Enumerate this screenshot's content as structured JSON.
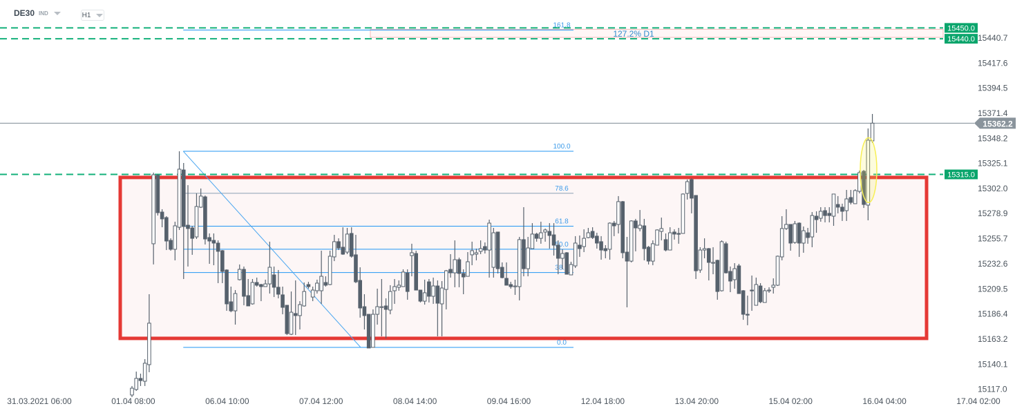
{
  "header": {
    "symbol": "DE30",
    "instrument_type": "IND",
    "timeframe": "H1"
  },
  "colors": {
    "candle": "#56616c",
    "fib": "#2196f3",
    "level_line": "#13b07a",
    "badge_green": "#0aa56c",
    "zone_border": "#e53935",
    "zone_fill": "#fdf6f6",
    "current_price": "#8a949c",
    "highlight": "#f7ef55"
  },
  "chart_data": {
    "type": "candlestick",
    "timeframe": "H1",
    "ylim": [
      15109.0,
      15475.7
    ],
    "y_ticks": [
      "15440.7",
      "15417.6",
      "15394.5",
      "15371.4",
      "15348.2",
      "15325.1",
      "15302.0",
      "15278.9",
      "15255.7",
      "15232.6",
      "15209.5",
      "15186.4",
      "15163.2",
      "15140.1",
      "15117.0"
    ],
    "x_ticks": [
      "31.03.2021  06:00",
      "01.04  08:00",
      "06.04  10:00",
      "07.04  12:00",
      "08.04  14:00",
      "09.04  16:00",
      "12.04  18:00",
      "13.04  20:00",
      "15.04  02:00",
      "16.04  04:00",
      "17.04  02:00"
    ],
    "current_price": {
      "value": 15362.2,
      "label": "15362.2"
    },
    "horizontal_levels": [
      {
        "value": 15450.0,
        "label": "15450.0"
      },
      {
        "value": 15440.0,
        "label": "15440.0"
      },
      {
        "value": 15315.0,
        "label": "15315.0"
      }
    ],
    "zone": {
      "top": 15312.2,
      "bottom": 15163.9
    },
    "fibonacci": {
      "high": 15336.3,
      "low": 15155.6,
      "levels": [
        {
          "ratio": "161.8",
          "value": 15448.0
        },
        {
          "ratio": "100.0",
          "value": 15336.3
        },
        {
          "ratio": "78.6",
          "value": 15297.6
        },
        {
          "ratio": "61.8",
          "value": 15267.3
        },
        {
          "ratio": "50.0",
          "value": 15246.0
        },
        {
          "ratio": "38.2",
          "value": 15224.6
        },
        {
          "ratio": "0.0",
          "value": 15155.6
        }
      ]
    },
    "projection_box": {
      "label": "127.2% D1",
      "top": 15450.0,
      "bottom": 15440.0
    },
    "highlight_ellipse": {
      "top": 15348.8,
      "bottom": 15289.0
    },
    "candles_ohlc": [
      [
        15111.7,
        15120.0,
        15109.8,
        15118.0
      ],
      [
        15116.8,
        15133.3,
        15115.5,
        15127.0
      ],
      [
        15127.0,
        15131.4,
        15120.0,
        15125.0
      ],
      [
        15124.4,
        15144.8,
        15120.0,
        15141.0
      ],
      [
        15139.7,
        15204.6,
        15132.7,
        15177.9
      ],
      [
        15251.1,
        15316.6,
        15232.0,
        15314.7
      ],
      [
        15314.1,
        15315.3,
        15277.1,
        15279.7
      ],
      [
        15280.3,
        15282.9,
        15266.3,
        15274.0
      ],
      [
        15275.2,
        15276.5,
        15245.3,
        15253.6
      ],
      [
        15254.2,
        15256.1,
        15244.7,
        15246.0
      ],
      [
        15246.0,
        15271.4,
        15235.8,
        15267.6
      ],
      [
        15266.3,
        15336.3,
        15263.8,
        15319.8
      ],
      [
        15319.1,
        15325.5,
        15218.6,
        15267.0
      ],
      [
        15268.2,
        15305.1,
        15230.1,
        15265.1
      ],
      [
        15265.7,
        15267.6,
        15240.9,
        15256.1
      ],
      [
        15257.4,
        15297.5,
        15255.5,
        15285.4
      ],
      [
        15284.8,
        15302.0,
        15284.1,
        15295.0
      ],
      [
        15294.3,
        15295.6,
        15250.4,
        15255.5
      ],
      [
        15256.8,
        15260.6,
        15232.6,
        15253.6
      ],
      [
        15254.2,
        15260.6,
        15231.3,
        15251.7
      ],
      [
        15251.7,
        15254.2,
        15214.8,
        15244.1
      ],
      [
        15244.7,
        15245.3,
        15214.8,
        15225.6
      ],
      [
        15226.9,
        15227.5,
        15189.3,
        15195.7
      ],
      [
        15197.6,
        15211.6,
        15188.0,
        15189.3
      ],
      [
        15189.3,
        15208.4,
        15176.6,
        15205.2
      ],
      [
        15218.0,
        15232.0,
        15217.3,
        15227.5
      ],
      [
        15227.5,
        15230.1,
        15194.4,
        15202.7
      ],
      [
        15203.3,
        15218.6,
        15193.8,
        15193.8
      ],
      [
        15195.7,
        15218.6,
        15195.0,
        15215.4
      ],
      [
        15215.4,
        15219.9,
        15211.6,
        15212.9
      ],
      [
        15213.5,
        15214.1,
        15198.2,
        15211.6
      ],
      [
        15211.6,
        15218.0,
        15211.6,
        15214.1
      ],
      [
        15214.1,
        15253.0,
        15205.2,
        15229.4
      ],
      [
        15222.4,
        15230.1,
        15202.0,
        15211.0
      ],
      [
        15211.0,
        15226.9,
        15200.8,
        15204.6
      ],
      [
        15204.0,
        15211.6,
        15186.1,
        15192.5
      ],
      [
        15194.4,
        15194.4,
        15167.0,
        15168.3
      ],
      [
        15167.7,
        15207.1,
        15167.0,
        15188.0
      ],
      [
        15186.8,
        15217.3,
        15167.0,
        15184.9
      ],
      [
        15184.9,
        15198.2,
        15172.1,
        15195.0
      ],
      [
        15193.8,
        15215.4,
        15193.1,
        15207.1
      ],
      [
        15213.5,
        15216.0,
        15209.7,
        15211.6
      ],
      [
        15202.0,
        15211.6,
        15198.2,
        15208.4
      ],
      [
        15207.8,
        15218.0,
        15205.2,
        15214.8
      ],
      [
        15207.8,
        15244.7,
        15195.7,
        15221.1
      ],
      [
        15215.4,
        15221.1,
        15211.6,
        15212.9
      ],
      [
        15213.5,
        15244.7,
        15212.9,
        15239.6
      ],
      [
        15239.0,
        15259.3,
        15235.1,
        15253.0
      ],
      [
        15253.0,
        15256.1,
        15245.3,
        15247.2
      ],
      [
        15247.9,
        15266.3,
        15240.9,
        15241.5
      ],
      [
        15243.4,
        15265.7,
        15241.5,
        15260.0
      ],
      [
        15260.6,
        15266.3,
        15238.3,
        15239.6
      ],
      [
        15240.9,
        15259.3,
        15214.8,
        15216.0
      ],
      [
        15217.3,
        15229.4,
        15183.0,
        15191.9
      ],
      [
        15193.1,
        15204.6,
        15172.1,
        15184.9
      ],
      [
        15186.1,
        15186.1,
        15155.0,
        15155.0
      ],
      [
        15155.6,
        15190.6,
        15155.6,
        15186.1
      ],
      [
        15186.1,
        15209.7,
        15176.6,
        15193.1
      ],
      [
        15192.5,
        15218.6,
        15165.8,
        15193.1
      ],
      [
        15193.8,
        15200.8,
        15163.9,
        15190.6
      ],
      [
        15190.0,
        15212.9,
        15186.1,
        15207.1
      ],
      [
        15207.8,
        15218.6,
        15195.7,
        15211.6
      ],
      [
        15211.0,
        15217.3,
        15207.8,
        15212.9
      ],
      [
        15211.6,
        15227.5,
        15211.6,
        15225.0
      ],
      [
        15224.3,
        15227.5,
        15199.5,
        15207.1
      ],
      [
        15240.2,
        15251.1,
        15221.1,
        15242.8
      ],
      [
        15242.1,
        15244.7,
        15208.4,
        15208.4
      ],
      [
        15208.4,
        15208.4,
        15197.0,
        15198.2
      ],
      [
        15198.2,
        15218.0,
        15195.0,
        15205.9
      ],
      [
        15216.0,
        15218.6,
        15197.0,
        15202.7
      ],
      [
        15202.7,
        15219.9,
        15195.7,
        15212.2
      ],
      [
        15212.2,
        15217.3,
        15165.8,
        15196.3
      ],
      [
        15195.7,
        15216.7,
        15165.8,
        15210.3
      ],
      [
        15209.0,
        15226.9,
        15190.6,
        15226.2
      ],
      [
        15227.5,
        15241.5,
        15219.9,
        15224.3
      ],
      [
        15224.3,
        15254.2,
        15211.0,
        15236.4
      ],
      [
        15236.4,
        15238.3,
        15211.0,
        15223.7
      ],
      [
        15223.7,
        15227.5,
        15204.6,
        15220.5
      ],
      [
        15221.1,
        15243.4,
        15221.1,
        15234.5
      ],
      [
        15240.9,
        15253.0,
        15231.3,
        15244.7
      ],
      [
        15241.5,
        15246.6,
        15235.8,
        15242.8
      ],
      [
        15244.1,
        15254.2,
        15241.5,
        15246.6
      ],
      [
        15248.5,
        15252.3,
        15242.1,
        15245.3
      ],
      [
        15245.3,
        15273.3,
        15219.9,
        15270.1
      ],
      [
        15229.4,
        15265.7,
        15219.9,
        15261.2
      ],
      [
        15261.9,
        15261.9,
        15223.7,
        15228.1
      ],
      [
        15229.4,
        15233.9,
        15219.2,
        15219.9
      ],
      [
        15219.2,
        15233.9,
        15212.9,
        15212.9
      ],
      [
        15213.5,
        15216.0,
        15209.7,
        15211.6
      ],
      [
        15211.6,
        15218.0,
        15204.0,
        15212.2
      ],
      [
        15211.6,
        15257.4,
        15198.9,
        15254.9
      ],
      [
        15254.9,
        15284.8,
        15221.1,
        15228.1
      ],
      [
        15228.1,
        15257.4,
        15221.1,
        15247.2
      ],
      [
        15246.6,
        15270.1,
        15246.6,
        15260.0
      ],
      [
        15260.0,
        15261.2,
        15253.0,
        15256.1
      ],
      [
        15256.1,
        15271.4,
        15251.1,
        15261.2
      ],
      [
        15261.9,
        15265.1,
        15253.0,
        15263.8
      ],
      [
        15262.5,
        15270.1,
        15246.6,
        15258.7
      ],
      [
        15259.3,
        15270.1,
        15240.2,
        15249.8
      ],
      [
        15249.8,
        15254.2,
        15223.0,
        15237.7
      ],
      [
        15237.7,
        15246.0,
        15227.5,
        15242.1
      ],
      [
        15242.8,
        15243.4,
        15223.0,
        15223.0
      ],
      [
        15222.4,
        15234.5,
        15222.4,
        15232.0
      ],
      [
        15230.7,
        15258.1,
        15228.8,
        15251.7
      ],
      [
        15249.8,
        15258.7,
        15239.0,
        15246.6
      ],
      [
        15248.5,
        15264.4,
        15243.4,
        15256.1
      ],
      [
        15256.8,
        15265.7,
        15256.1,
        15261.2
      ],
      [
        15262.5,
        15266.3,
        15255.5,
        15256.8
      ],
      [
        15258.1,
        15261.2,
        15246.6,
        15251.7
      ],
      [
        15253.0,
        15258.1,
        15236.4,
        15245.3
      ],
      [
        15246.6,
        15249.8,
        15237.7,
        15244.7
      ],
      [
        15246.0,
        15270.8,
        15236.4,
        15270.1
      ],
      [
        15270.1,
        15272.1,
        15258.1,
        15267.6
      ],
      [
        15268.9,
        15295.0,
        15260.6,
        15289.9
      ],
      [
        15289.9,
        15290.5,
        15237.7,
        15242.8
      ],
      [
        15243.4,
        15257.4,
        15192.5,
        15235.1
      ],
      [
        15235.1,
        15272.7,
        15233.9,
        15272.1
      ],
      [
        15272.1,
        15274.0,
        15244.1,
        15265.7
      ],
      [
        15265.1,
        15282.2,
        15262.5,
        15268.2
      ],
      [
        15267.6,
        15274.0,
        15235.8,
        15246.6
      ],
      [
        15247.9,
        15249.1,
        15232.0,
        15235.1
      ],
      [
        15235.1,
        15254.2,
        15231.3,
        15251.1
      ],
      [
        15249.8,
        15264.4,
        15249.8,
        15263.8
      ],
      [
        15262.5,
        15275.2,
        15254.2,
        15265.1
      ],
      [
        15254.9,
        15260.6,
        15244.1,
        15245.3
      ],
      [
        15245.3,
        15266.3,
        15245.3,
        15261.2
      ],
      [
        15261.9,
        15264.4,
        15254.9,
        15260.0
      ],
      [
        15260.6,
        15265.7,
        15251.1,
        15260.0
      ],
      [
        15260.6,
        15297.5,
        15260.6,
        15296.9
      ],
      [
        15297.5,
        15310.2,
        15291.8,
        15308.3
      ],
      [
        15310.2,
        15311.5,
        15279.1,
        15293.1
      ],
      [
        15295.6,
        15295.6,
        15218.6,
        15226.2
      ],
      [
        15226.9,
        15247.9,
        15224.3,
        15245.3
      ],
      [
        15245.3,
        15256.1,
        15237.7,
        15246.6
      ],
      [
        15246.6,
        15247.2,
        15217.3,
        15233.9
      ],
      [
        15233.2,
        15247.9,
        15223.0,
        15233.9
      ],
      [
        15235.8,
        15236.4,
        15199.5,
        15207.1
      ],
      [
        15207.8,
        15254.2,
        15207.1,
        15253.0
      ],
      [
        15251.1,
        15253.0,
        15223.7,
        15224.3
      ],
      [
        15225.6,
        15230.1,
        15206.5,
        15216.7
      ],
      [
        15218.0,
        15233.2,
        15209.7,
        15228.1
      ],
      [
        15230.7,
        15232.6,
        15205.2,
        15205.2
      ],
      [
        15207.8,
        15208.4,
        15181.0,
        15186.1
      ],
      [
        15186.1,
        15203.3,
        15176.0,
        15185.5
      ],
      [
        15208.4,
        15221.8,
        15189.3,
        15207.8
      ],
      [
        15194.4,
        15219.9,
        15194.4,
        15213.5
      ],
      [
        15212.2,
        15214.8,
        15196.3,
        15197.6
      ],
      [
        15197.0,
        15210.3,
        15197.0,
        15207.8
      ],
      [
        15207.8,
        15211.0,
        15205.9,
        15208.4
      ],
      [
        15211.0,
        15219.2,
        15205.2,
        15212.9
      ],
      [
        15212.9,
        15240.2,
        15212.2,
        15239.6
      ],
      [
        15239.0,
        15276.5,
        15235.8,
        15265.1
      ],
      [
        15265.1,
        15282.9,
        15263.8,
        15268.9
      ],
      [
        15268.9,
        15268.9,
        15244.7,
        15251.7
      ],
      [
        15252.3,
        15272.1,
        15251.1,
        15269.5
      ],
      [
        15270.1,
        15270.8,
        15239.0,
        15251.7
      ],
      [
        15251.7,
        15267.0,
        15242.8,
        15263.1
      ],
      [
        15261.2,
        15265.7,
        15251.1,
        15256.8
      ],
      [
        15257.4,
        15280.3,
        15247.9,
        15277.1
      ],
      [
        15276.5,
        15281.0,
        15261.2,
        15273.3
      ],
      [
        15274.6,
        15284.8,
        15271.4,
        15281.0
      ],
      [
        15281.6,
        15284.8,
        15270.8,
        15277.1
      ],
      [
        15279.1,
        15284.8,
        15270.8,
        15277.1
      ],
      [
        15276.5,
        15296.9,
        15267.6,
        15296.9
      ],
      [
        15287.3,
        15295.0,
        15279.1,
        15284.8
      ],
      [
        15284.8,
        15288.0,
        15272.1,
        15281.0
      ],
      [
        15281.6,
        15300.7,
        15272.1,
        15292.4
      ],
      [
        15293.7,
        15300.7,
        15287.3,
        15289.2
      ],
      [
        15288.0,
        15301.3,
        15288.0,
        15300.1
      ],
      [
        15299.4,
        15318.5,
        15297.5,
        15316.6
      ],
      [
        15317.9,
        15319.1,
        15284.1,
        15287.3
      ],
      [
        15286.7,
        15357.3,
        15272.7,
        15346.5
      ],
      [
        15345.9,
        15370.7,
        15344.0,
        15362.2
      ]
    ]
  }
}
